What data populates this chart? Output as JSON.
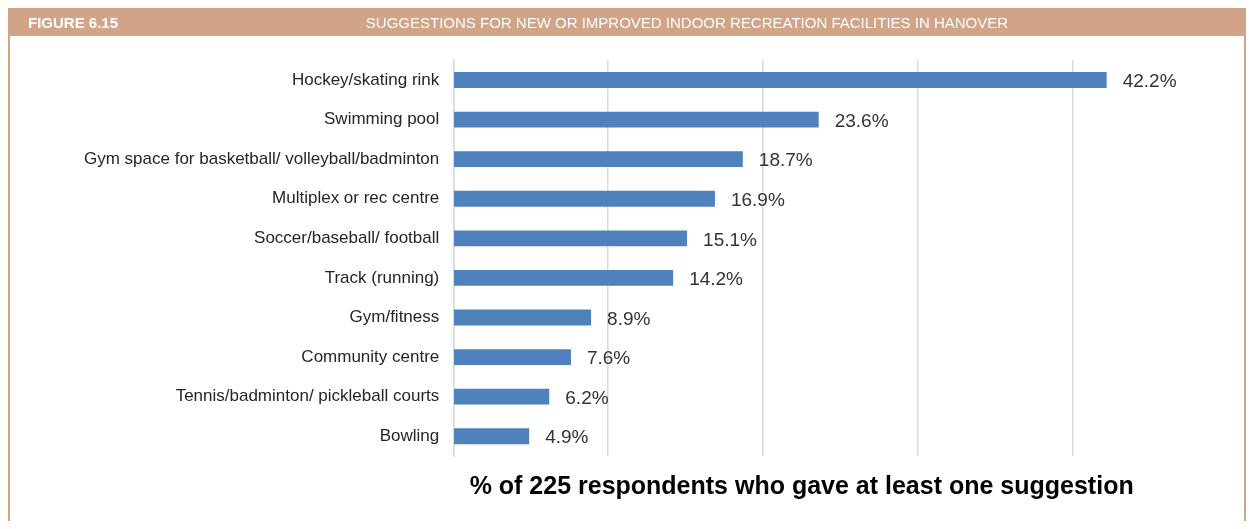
{
  "chart_data": {
    "type": "bar",
    "orientation": "horizontal",
    "title": "SUGGESTIONS FOR NEW OR IMPROVED INDOOR RECREATION FACILITIES IN HANOVER",
    "annotations": [
      "FIGURE 6.15"
    ],
    "xlabel": "% of 225 respondents who gave at least one suggestion",
    "categories": [
      "Hockey/skating rink",
      "Swimming pool",
      "Gym space for basketball/ volleyball/badminton",
      "Multiplex or rec centre",
      "Soccer/baseball/ football",
      "Track (running)",
      "Gym/fitness",
      "Community centre",
      "Tennis/badminton/ pickleball courts",
      "Bowling"
    ],
    "values": [
      42.2,
      23.6,
      18.7,
      16.9,
      15.1,
      14.2,
      8.9,
      7.6,
      6.2,
      4.9
    ],
    "value_labels": [
      "42.2%",
      "23.6%",
      "18.7%",
      "16.9%",
      "15.1%",
      "14.2%",
      "8.9%",
      "7.6%",
      "6.2%",
      "4.9%"
    ],
    "color": "#4f81bd",
    "xticks": [
      {
        "value": 0,
        "label": null
      },
      {
        "value": 10,
        "label": null
      },
      {
        "value": 20,
        "label": null
      },
      {
        "value": 30,
        "label": null
      },
      {
        "value": 40,
        "label": null
      }
    ],
    "grid": "x",
    "tick_labels": "y",
    "legend": false
  }
}
